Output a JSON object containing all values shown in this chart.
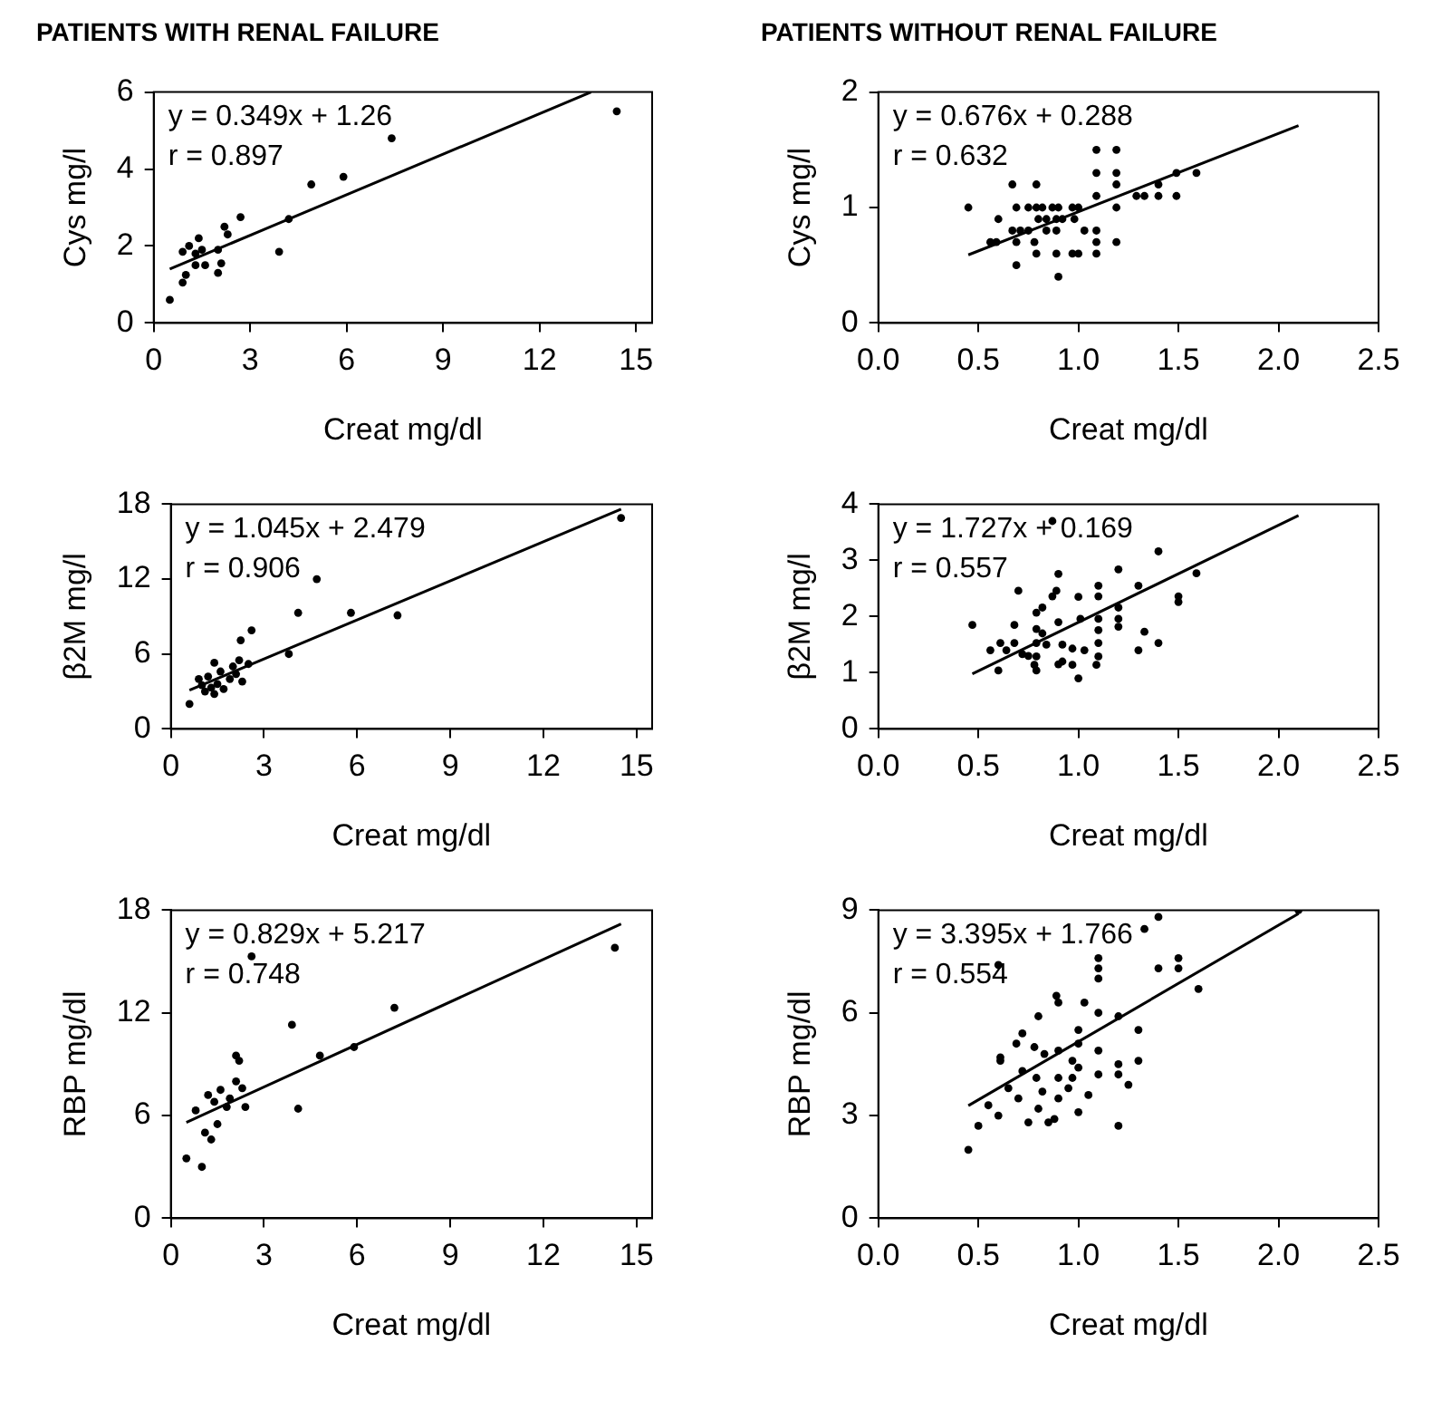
{
  "chart_data": [
    {
      "type": "scatter",
      "title": "PATIENTS WITH RENAL FAILURE",
      "xlabel": "Creat mg/dl",
      "ylabel": "Cys mg/l",
      "xlim": [
        0,
        15.5
      ],
      "xticks": [
        0,
        3,
        6,
        9,
        12,
        15
      ],
      "ylim": [
        0,
        6
      ],
      "yticks": [
        0,
        2,
        4,
        6
      ],
      "marker": "circle",
      "grid": false,
      "annotations": [
        "y = 0.349x + 1.26",
        "r = 0.897"
      ],
      "series": [
        {
          "type": "scatter",
          "color": "#000000",
          "x": [
            0.5,
            0.9,
            1.0,
            0.9,
            1.1,
            1.3,
            1.4,
            1.3,
            1.6,
            1.5,
            2.0,
            2.1,
            2.0,
            2.2,
            2.3,
            2.7,
            3.9,
            4.2,
            4.9,
            5.9,
            7.4,
            14.4
          ],
          "values": [
            0.6,
            1.05,
            1.25,
            1.85,
            2.0,
            1.8,
            2.2,
            1.5,
            1.5,
            1.9,
            1.3,
            1.55,
            1.9,
            2.5,
            2.3,
            2.75,
            1.85,
            2.7,
            3.6,
            3.8,
            4.8,
            5.5
          ]
        },
        {
          "type": "line",
          "color": "#000000",
          "marker": "none",
          "x": [
            0.5,
            13.6
          ],
          "values": [
            1.4,
            6.0
          ]
        }
      ]
    },
    {
      "type": "scatter",
      "title": "PATIENTS WITHOUT RENAL FAILURE",
      "xlabel": "Creat mg/dl",
      "ylabel": "Cys mg/l",
      "xlim": [
        0,
        2.5
      ],
      "xticks": [
        {
          "value": 0,
          "label": "0.0"
        },
        {
          "value": 0.5,
          "label": "0.5"
        },
        {
          "value": 1,
          "label": "1.0"
        },
        {
          "value": 1.5,
          "label": "1.5"
        },
        {
          "value": 2,
          "label": "2.0"
        },
        {
          "value": 2.5,
          "label": "2.5"
        }
      ],
      "ylim": [
        0,
        2
      ],
      "yticks": [
        0,
        1,
        2
      ],
      "marker": "circle",
      "grid": false,
      "annotations": [
        "y = 0.676x + 0.288",
        "r = 0.632"
      ],
      "series": [
        {
          "type": "scatter",
          "color": "#000000",
          "x": [
            0.45,
            0.56,
            0.59,
            0.6,
            0.67,
            0.79,
            0.67,
            0.71,
            0.75,
            0.69,
            0.69,
            0.75,
            0.79,
            0.82,
            0.69,
            0.78,
            0.79,
            0.89,
            0.97,
            1.0,
            0.9,
            0.8,
            0.84,
            0.89,
            0.92,
            0.98,
            0.87,
            0.9,
            0.97,
            1.0,
            0.84,
            0.89,
            1.03,
            1.09,
            1.09,
            1.09,
            1.19,
            1.09,
            1.19,
            1.19,
            1.09,
            1.19,
            1.19,
            1.09,
            1.29,
            1.33,
            1.4,
            1.49,
            1.4,
            1.49,
            1.59
          ],
          "values": [
            1.0,
            0.7,
            0.7,
            0.9,
            1.2,
            1.2,
            0.8,
            0.8,
            0.8,
            0.5,
            1.0,
            1.0,
            1.0,
            1.0,
            0.7,
            0.7,
            0.6,
            0.6,
            0.6,
            0.6,
            0.4,
            0.9,
            0.9,
            0.9,
            0.9,
            0.9,
            1.0,
            1.0,
            1.0,
            1.0,
            0.8,
            0.8,
            0.8,
            0.8,
            0.7,
            1.5,
            1.5,
            1.3,
            1.3,
            1.2,
            1.1,
            1.0,
            0.7,
            0.6,
            1.1,
            1.1,
            1.1,
            1.1,
            1.2,
            1.3,
            1.3
          ]
        },
        {
          "type": "line",
          "color": "#000000",
          "marker": "none",
          "x": [
            0.45,
            2.1
          ],
          "values": [
            0.59,
            1.71
          ]
        }
      ]
    },
    {
      "type": "scatter",
      "xlabel": "Creat mg/dl",
      "ylabel": "β2M mg/l",
      "xlim": [
        0,
        15.5
      ],
      "xticks": [
        0,
        3,
        6,
        9,
        12,
        15
      ],
      "ylim": [
        0,
        18
      ],
      "yticks": [
        0,
        6,
        12,
        18
      ],
      "marker": "circle",
      "grid": false,
      "annotations": [
        "y = 1.045x + 2.479",
        "r = 0.906"
      ],
      "series": [
        {
          "type": "scatter",
          "color": "#000000",
          "x": [
            0.6,
            0.9,
            1.0,
            1.1,
            1.2,
            1.3,
            1.4,
            1.5,
            1.6,
            1.7,
            1.9,
            2.0,
            2.1,
            2.2,
            2.3,
            1.4,
            2.5,
            2.25,
            2.6,
            3.8,
            4.1,
            4.7,
            5.8,
            7.3,
            14.5
          ],
          "values": [
            2.0,
            4.0,
            3.5,
            3.0,
            4.2,
            3.3,
            2.8,
            3.6,
            4.6,
            3.2,
            4.0,
            5.0,
            4.4,
            5.5,
            3.8,
            5.3,
            5.2,
            7.1,
            7.9,
            6.0,
            9.3,
            12.0,
            9.3,
            9.1,
            16.9
          ]
        },
        {
          "type": "line",
          "color": "#000000",
          "marker": "none",
          "x": [
            0.6,
            14.5
          ],
          "values": [
            3.1,
            17.6
          ]
        }
      ]
    },
    {
      "type": "scatter",
      "xlabel": "Creat mg/dl",
      "ylabel": "β2M mg/l",
      "xlim": [
        0,
        2.5
      ],
      "xticks": [
        {
          "value": 0,
          "label": "0.0"
        },
        {
          "value": 0.5,
          "label": "0.5"
        },
        {
          "value": 1,
          "label": "1.0"
        },
        {
          "value": 1.5,
          "label": "1.5"
        },
        {
          "value": 2,
          "label": "2.0"
        },
        {
          "value": 2.5,
          "label": "2.5"
        }
      ],
      "ylim": [
        0,
        4
      ],
      "yticks": [
        0,
        1,
        2,
        3,
        4
      ],
      "marker": "circle",
      "grid": false,
      "annotations": [
        "y = 1.727x + 0.169",
        "r = 0.557"
      ],
      "series": [
        {
          "type": "scatter",
          "color": "#000000",
          "x": [
            0.47,
            0.56,
            0.61,
            0.6,
            0.7,
            0.68,
            0.68,
            0.64,
            0.72,
            0.75,
            0.79,
            0.79,
            0.79,
            0.79,
            0.79,
            0.78,
            0.82,
            0.82,
            0.84,
            0.87,
            0.89,
            0.9,
            0.9,
            0.92,
            0.92,
            0.9,
            0.87,
            1.0,
            1.01,
            0.97,
            0.97,
            1.0,
            1.03,
            1.1,
            1.1,
            1.1,
            1.1,
            1.1,
            1.1,
            1.2,
            1.2,
            1.2,
            1.2,
            1.3,
            1.3,
            1.33,
            1.4,
            1.4,
            1.5,
            1.5,
            1.59,
            1.09
          ],
          "values": [
            1.85,
            1.4,
            1.53,
            1.04,
            2.46,
            1.85,
            1.53,
            1.4,
            1.33,
            1.3,
            2.07,
            1.78,
            1.53,
            1.29,
            1.04,
            1.14,
            2.16,
            1.7,
            1.5,
            2.36,
            2.46,
            2.76,
            1.9,
            1.5,
            1.2,
            1.15,
            3.7,
            2.35,
            1.96,
            1.43,
            1.14,
            0.9,
            1.4,
            2.55,
            2.36,
            1.96,
            1.76,
            1.53,
            1.29,
            2.16,
            1.96,
            1.82,
            2.84,
            2.55,
            1.4,
            1.73,
            3.16,
            1.53,
            2.36,
            2.26,
            2.77,
            1.14
          ]
        },
        {
          "type": "line",
          "color": "#000000",
          "marker": "none",
          "x": [
            0.47,
            2.1
          ],
          "values": [
            0.98,
            3.8
          ]
        }
      ]
    },
    {
      "type": "scatter",
      "xlabel": "Creat mg/dl",
      "ylabel": "RBP mg/dl",
      "xlim": [
        0,
        15.5
      ],
      "xticks": [
        0,
        3,
        6,
        9,
        12,
        15
      ],
      "ylim": [
        0,
        18
      ],
      "yticks": [
        0,
        6,
        12,
        18
      ],
      "marker": "circle",
      "grid": false,
      "annotations": [
        "y = 0.829x + 5.217",
        "r = 0.748"
      ],
      "series": [
        {
          "type": "scatter",
          "color": "#000000",
          "x": [
            0.5,
            0.8,
            1.0,
            1.1,
            1.2,
            1.3,
            1.4,
            1.5,
            1.6,
            1.8,
            1.9,
            2.1,
            2.2,
            2.3,
            2.4,
            2.1,
            2.6,
            3.9,
            4.1,
            4.8,
            5.9,
            7.2,
            14.3
          ],
          "values": [
            3.5,
            6.3,
            3.0,
            5.0,
            7.2,
            4.6,
            6.8,
            5.5,
            7.5,
            6.5,
            7.0,
            8.0,
            9.2,
            7.6,
            6.5,
            9.5,
            15.3,
            11.3,
            6.4,
            9.5,
            10.0,
            12.3,
            15.8
          ]
        },
        {
          "type": "line",
          "color": "#000000",
          "marker": "none",
          "x": [
            0.5,
            14.5
          ],
          "values": [
            5.6,
            17.2
          ]
        }
      ]
    },
    {
      "type": "scatter",
      "xlabel": "Creat mg/dl",
      "ylabel": "RBP mg/dl",
      "xlim": [
        0,
        2.5
      ],
      "xticks": [
        {
          "value": 0,
          "label": "0.0"
        },
        {
          "value": 0.5,
          "label": "0.5"
        },
        {
          "value": 1,
          "label": "1.0"
        },
        {
          "value": 1.5,
          "label": "1.5"
        },
        {
          "value": 2,
          "label": "2.0"
        },
        {
          "value": 2.5,
          "label": "2.5"
        }
      ],
      "ylim": [
        0,
        9
      ],
      "yticks": [
        0,
        3,
        6,
        9
      ],
      "marker": "circle",
      "grid": false,
      "annotations": [
        "y = 3.395x + 1.766",
        "r = 0.554"
      ],
      "series": [
        {
          "type": "scatter",
          "color": "#000000",
          "x": [
            2.1,
            1.4,
            1.33,
            1.4,
            1.5,
            1.5,
            1.6,
            1.1,
            1.1,
            1.1,
            0.89,
            0.9,
            1.03,
            0.8,
            0.6,
            1.1,
            1.2,
            1.0,
            1.0,
            1.3,
            1.3,
            1.1,
            1.1,
            1.2,
            1.2,
            0.72,
            0.61,
            0.61,
            0.69,
            0.78,
            0.83,
            0.9,
            0.97,
            0.9,
            0.97,
            0.79,
            0.82,
            0.45,
            0.5,
            0.55,
            0.6,
            0.65,
            0.7,
            0.75,
            0.8,
            0.85,
            0.9,
            0.95,
            1.0,
            1.05,
            1.2,
            1.25,
            0.88,
            0.72,
            1.0
          ],
          "values": [
            9.0,
            8.8,
            8.45,
            7.3,
            7.6,
            7.3,
            6.7,
            7.6,
            7.3,
            7.0,
            6.5,
            6.3,
            6.3,
            5.9,
            7.4,
            6.0,
            5.9,
            5.5,
            5.1,
            5.5,
            4.6,
            4.9,
            4.2,
            4.5,
            4.2,
            5.4,
            4.7,
            4.6,
            5.1,
            5.0,
            4.8,
            4.9,
            4.6,
            4.1,
            4.1,
            4.1,
            3.7,
            2.0,
            2.7,
            3.3,
            3.0,
            3.8,
            3.5,
            2.8,
            3.2,
            2.8,
            3.5,
            3.8,
            3.1,
            3.6,
            2.7,
            3.9,
            2.9,
            4.3,
            4.4
          ]
        },
        {
          "type": "line",
          "color": "#000000",
          "marker": "none",
          "x": [
            0.45,
            2.1
          ],
          "values": [
            3.29,
            8.9
          ]
        }
      ]
    }
  ]
}
